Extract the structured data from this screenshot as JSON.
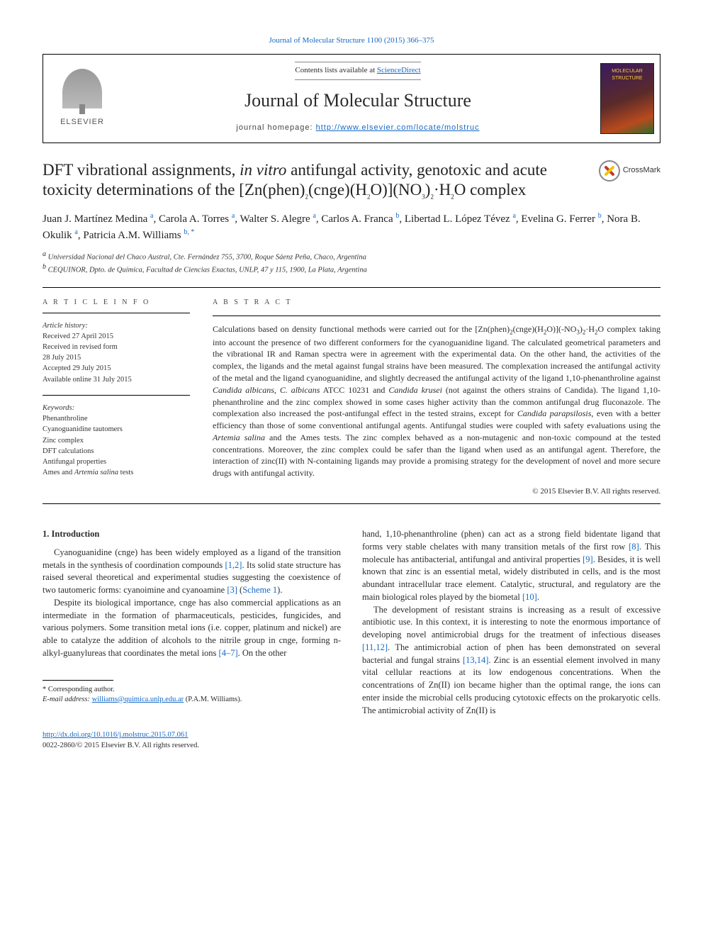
{
  "top_link": "Journal of Molecular Structure 1100 (2015) 366–375",
  "header": {
    "publisher": "ELSEVIER",
    "contents_prefix": "Contents lists available at ",
    "contents_link": "ScienceDirect",
    "journal": "Journal of Molecular Structure",
    "homepage_prefix": "journal homepage: ",
    "homepage_url": "http://www.elsevier.com/locate/molstruc",
    "cover_text": "MOLECULAR STRUCTURE"
  },
  "crossmark": "CrossMark",
  "title_html": "DFT vibrational assignments, <i>in vitro</i> antifungal activity, genotoxic and acute toxicity determinations of the [Zn(phen)<sub>2</sub>(cnge)(H<sub>2</sub>O)](NO<sub>3</sub>)<sub>2</sub>·H<sub>2</sub>O complex",
  "authors_html": "Juan J. Martínez Medina <span class='sup'>a</span>, Carola A. Torres <span class='sup'>a</span>, Walter S. Alegre <span class='sup'>a</span>, Carlos A. Franca <span class='sup'>b</span>, Libertad L. López Tévez <span class='sup'>a</span>, Evelina G. Ferrer <span class='sup'>b</span>, Nora B. Okulik <span class='sup'>a</span>, Patricia A.M. Williams <span class='sup'>b, *</span>",
  "affiliations": {
    "a": "Universidad Nacional del Chaco Austral, Cte. Fernández 755, 3700, Roque Sáenz Peña, Chaco, Argentina",
    "b": "CEQUINOR, Dpto. de Química, Facultad de Ciencias Exactas, UNLP, 47 y 115, 1900, La Plata, Argentina"
  },
  "article_info": {
    "head": "A R T I C L E   I N F O",
    "history_label": "Article history:",
    "history": [
      "Received 27 April 2015",
      "Received in revised form",
      "28 July 2015",
      "Accepted 29 July 2015",
      "Available online 31 July 2015"
    ],
    "keywords_label": "Keywords:",
    "keywords": [
      "Phenanthroline",
      "Cyanoguanidine tautomers",
      "Zinc complex",
      "DFT calculations",
      "Antifungal properties"
    ],
    "keywords_last_html": "Ames and <i>Artemia salina</i> tests"
  },
  "abstract": {
    "head": "A B S T R A C T",
    "text_html": "Calculations based on density functional methods were carried out for the [Zn(phen)<sub>2</sub>(cnge)(H<sub>2</sub>O)](-NO<sub>3</sub>)<sub>2</sub>·H<sub>2</sub>O complex taking into account the presence of two different conformers for the cyanoguanidine ligand. The calculated geometrical parameters and the vibrational IR and Raman spectra were in agreement with the experimental data. On the other hand, the activities of the complex, the ligands and the metal against fungal strains have been measured. The complexation increased the antifungal activity of the metal and the ligand cyanoguanidine, and slightly decreased the antifungal activity of the ligand 1,10-phenanthroline against <i>Candida albicans</i>, <i>C. albicans</i> ATCC 10231 and <i>Candida krusei</i> (not against the others strains of Candida). The ligand 1,10-phenanthroline and the zinc complex showed in some cases higher activity than the common antifungal drug fluconazole. The complexation also increased the post-antifungal effect in the tested strains, except for <i>Candida parapsilosis</i>, even with a better efficiency than those of some conventional antifungal agents. Antifungal studies were coupled with safety evaluations using the <i>Artemia salina</i> and the Ames tests. The zinc complex behaved as a non-mutagenic and non-toxic compound at the tested concentrations. Moreover, the zinc complex could be safer than the ligand when used as an antifungal agent. Therefore, the interaction of zinc(II) with N-containing ligands may provide a promising strategy for the development of novel and more secure drugs with antifungal activity.",
    "copyright": "© 2015 Elsevier B.V. All rights reserved."
  },
  "body": {
    "section_head": "1.  Introduction",
    "p1_html": "Cyanoguanidine (cnge) has been widely employed as a ligand of the transition metals in the synthesis of coordination compounds <span class='ref'>[1,2]</span>. Its solid state structure has raised several theoretical and experimental studies suggesting the coexistence of two tautomeric forms: cyanoimine and cyanoamine <span class='ref'>[3]</span> (<span class='ref'>Scheme 1</span>).",
    "p2_html": "Despite its biological importance, cnge has also commercial applications as an intermediate in the formation of pharmaceuticals, pesticides, fungicides, and various polymers. Some transition metal ions (i.e. copper, platinum and nickel) are able to catalyze the addition of alcohols to the nitrile group in cnge, forming n-alkyl-guanylureas that coordinates the metal ions <span class='ref'>[4–7]</span>. On the other",
    "p3_html": "hand, 1,10-phenanthroline (phen) can act as a strong field bidentate ligand that forms very stable chelates with many transition metals of the first row <span class='ref'>[8]</span>. This molecule has antibacterial, antifungal and antiviral properties <span class='ref'>[9]</span>. Besides, it is well known that zinc is an essential metal, widely distributed in cells, and is the most abundant intracellular trace element. Catalytic, structural, and regulatory are the main biological roles played by the biometal <span class='ref'>[10]</span>.",
    "p4_html": "The development of resistant strains is increasing as a result of excessive antibiotic use. In this context, it is interesting to note the enormous importance of developing novel antimicrobial drugs for the treatment of infectious diseases <span class='ref'>[11,12]</span>. The antimicrobial action of phen has been demonstrated on several bacterial and fungal strains <span class='ref'>[13,14]</span>. Zinc is an essential element involved in many vital cellular reactions at its low endogenous concentrations. When the concentrations of Zn(II) ion became higher than the optimal range, the ions can enter inside the microbial cells producing cytotoxic effects on the prokaryotic cells. The antimicrobial activity of Zn(II) is"
  },
  "footnote": {
    "corr": "* Corresponding author.",
    "email_label": "E-mail address:",
    "email": "williams@quimica.unlp.edu.ar",
    "email_who": "(P.A.M. Williams)."
  },
  "doi": {
    "url": "http://dx.doi.org/10.1016/j.molstruc.2015.07.061",
    "line2": "0022-2860/© 2015 Elsevier B.V. All rights reserved."
  },
  "colors": {
    "link": "#1468c7",
    "text": "#2b2b2b",
    "rule": "#000000"
  }
}
